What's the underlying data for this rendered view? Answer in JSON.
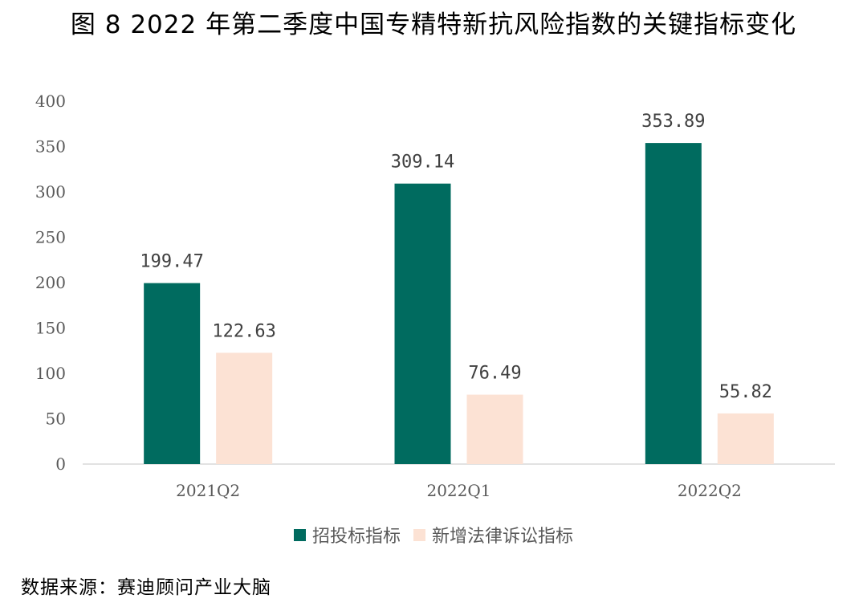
{
  "title": "图 8 2022 年第二季度中国专精特新抗风险指数的关键指标变化",
  "source_text": "数据来源：赛迪顾问产业大脑",
  "colors": {
    "series_1": "#006B5F",
    "series_2": "#FCE2D4",
    "axis_line": "#D9D9D9",
    "tick_text": "#595959",
    "data_label_text": "#404040"
  },
  "chart_data": {
    "type": "bar",
    "title": "图 8 2022 年第二季度中国专精特新抗风险指数的关键指标变化",
    "categories": [
      "2021Q2",
      "2022Q1",
      "2022Q2"
    ],
    "series": [
      {
        "name": "招投标指标",
        "values": [
          199.47,
          309.14,
          353.89
        ]
      },
      {
        "name": "新增法律诉讼指标",
        "values": [
          122.63,
          76.49,
          55.82
        ]
      }
    ],
    "data_labels": [
      [
        "199.47",
        "309.14",
        "353.89"
      ],
      [
        "122.63",
        "76.49",
        "55.82"
      ]
    ],
    "yticks": [
      0,
      50,
      100,
      150,
      200,
      250,
      300,
      350,
      400
    ],
    "ylim": [
      0,
      400
    ],
    "xlabel": "",
    "ylabel": "",
    "grid": false,
    "legend_position": "bottom"
  }
}
